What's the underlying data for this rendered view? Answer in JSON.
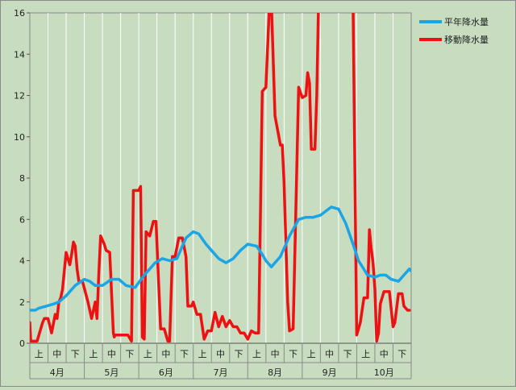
{
  "chart_data": {
    "type": "line",
    "title": "",
    "xlabel": "",
    "ylabel": "",
    "ylim": [
      0,
      16
    ],
    "yticks": [
      0,
      2,
      4,
      6,
      8,
      10,
      12,
      14,
      16
    ],
    "x_range": [
      0,
      21
    ],
    "sub_ticks": [
      "上",
      "中",
      "下",
      "上",
      "中",
      "下",
      "上",
      "中",
      "下",
      "上",
      "中",
      "下",
      "上",
      "中",
      "下",
      "上",
      "中",
      "下",
      "上",
      "中",
      "下"
    ],
    "months": [
      "4月",
      "5月",
      "6月",
      "7月",
      "8月",
      "9月",
      "10月"
    ],
    "grid": "vertical",
    "legend_position": "top-right",
    "series": [
      {
        "name": "平年降水量",
        "color": "#1aa6e6",
        "x": [
          0,
          0.3,
          0.5,
          0.9,
          1.3,
          1.6,
          2.0,
          2.5,
          3.0,
          3.3,
          3.6,
          4.0,
          4.5,
          4.9,
          5.3,
          5.8,
          6.3,
          6.6,
          6.9,
          7.3,
          7.7,
          8.1,
          8.6,
          9.0,
          9.3,
          9.7,
          10.0,
          10.4,
          10.8,
          11.2,
          11.6,
          12.0,
          12.5,
          12.8,
          13.0,
          13.3,
          13.8,
          14.3,
          14.8,
          15.2,
          15.6,
          16.0,
          16.3,
          16.6,
          17.0,
          17.4,
          17.8,
          18.1,
          18.6,
          19.0,
          19.3,
          19.6,
          19.9,
          20.3,
          20.6,
          20.9,
          21.0
        ],
        "y": [
          1.6,
          1.6,
          1.7,
          1.8,
          1.9,
          2.0,
          2.3,
          2.8,
          3.1,
          3.0,
          2.8,
          2.8,
          3.1,
          3.1,
          2.8,
          2.7,
          3.3,
          3.6,
          3.9,
          4.1,
          4.0,
          4.1,
          5.1,
          5.4,
          5.3,
          4.8,
          4.5,
          4.1,
          3.9,
          4.1,
          4.5,
          4.8,
          4.7,
          4.3,
          4.0,
          3.7,
          4.2,
          5.2,
          6.0,
          6.1,
          6.1,
          6.2,
          6.4,
          6.6,
          6.5,
          5.8,
          4.8,
          4.0,
          3.3,
          3.2,
          3.3,
          3.3,
          3.1,
          3.0,
          3.3,
          3.6,
          3.5
        ]
      },
      {
        "name": "移動降水量",
        "color": "#ee1111",
        "x": [
          0,
          0.05,
          0.1,
          0.4,
          0.7,
          0.8,
          0.9,
          1.0,
          1.2,
          1.4,
          1.5,
          1.6,
          1.7,
          1.8,
          2.0,
          2.2,
          2.3,
          2.4,
          2.5,
          2.6,
          2.7,
          2.9,
          3.2,
          3.4,
          3.6,
          3.7,
          3.8,
          3.9,
          4.1,
          4.2,
          4.4,
          4.6,
          4.65,
          4.7,
          5.0,
          5.4,
          5.6,
          5.7,
          6.0,
          6.1,
          6.2,
          6.3,
          6.4,
          6.6,
          6.8,
          6.95,
          7.2,
          7.4,
          7.6,
          7.7,
          7.85,
          8.0,
          8.2,
          8.4,
          8.6,
          8.7,
          8.9,
          9.0,
          9.2,
          9.4,
          9.6,
          9.8,
          10.0,
          10.2,
          10.4,
          10.6,
          10.8,
          11.0,
          11.2,
          11.4,
          11.6,
          11.8,
          12.0,
          12.2,
          12.4,
          12.6,
          12.8,
          13.0,
          13.2,
          13.3,
          13.5,
          13.8,
          13.9,
          14.0,
          14.2,
          14.3,
          14.5,
          14.8,
          15.0,
          15.2,
          15.3,
          15.4,
          15.5,
          15.6,
          15.7,
          15.8,
          15.9,
          16.0,
          16.1,
          16.2,
          16.3,
          16.5,
          16.8,
          17.0,
          17.2,
          17.5,
          17.7,
          17.8,
          18.0,
          18.2,
          18.4,
          18.6,
          18.7,
          18.8,
          18.9,
          19.0,
          19.1,
          19.2,
          19.3,
          19.5,
          19.8,
          20.0,
          20.1,
          20.3,
          20.5,
          20.6,
          20.8,
          20.9
        ],
        "y": [
          1.0,
          0.1,
          0.1,
          0.1,
          1.0,
          1.2,
          1.2,
          1.2,
          0.5,
          1.4,
          1.2,
          2.0,
          2.2,
          2.6,
          4.4,
          3.8,
          4.3,
          4.9,
          4.7,
          3.6,
          3.0,
          3.0,
          2.0,
          1.2,
          2.0,
          1.2,
          3.4,
          5.2,
          4.8,
          4.5,
          4.4,
          0.5,
          0.3,
          0.4,
          0.4,
          0.4,
          0.1,
          7.4,
          7.4,
          7.6,
          0.3,
          0.2,
          5.4,
          5.2,
          5.9,
          5.9,
          0.7,
          0.7,
          0.1,
          0.1,
          4.2,
          4.2,
          5.1,
          5.1,
          4.2,
          1.8,
          1.8,
          2.0,
          1.4,
          1.4,
          0.2,
          0.6,
          0.6,
          1.5,
          0.8,
          1.3,
          0.8,
          1.1,
          0.8,
          0.8,
          0.5,
          0.5,
          0.2,
          0.6,
          0.5,
          0.5,
          12.2,
          12.4,
          16.5,
          16.5,
          11.0,
          9.6,
          9.6,
          7.8,
          2.0,
          0.6,
          0.7,
          12.4,
          11.9,
          12.0,
          13.1,
          12.6,
          9.4,
          9.4,
          9.4,
          12.0,
          16.5,
          16.5,
          16.5,
          16.5,
          16.5,
          16.5,
          16.5,
          16.5,
          16.5,
          16.5,
          16.5,
          16.5,
          0.4,
          1.0,
          2.2,
          2.2,
          5.5,
          4.6,
          3.9,
          2.6,
          0.1,
          0.5,
          1.9,
          2.5,
          2.5,
          0.8,
          1.0,
          2.4,
          2.4,
          1.8,
          1.6,
          1.6
        ]
      }
    ]
  }
}
